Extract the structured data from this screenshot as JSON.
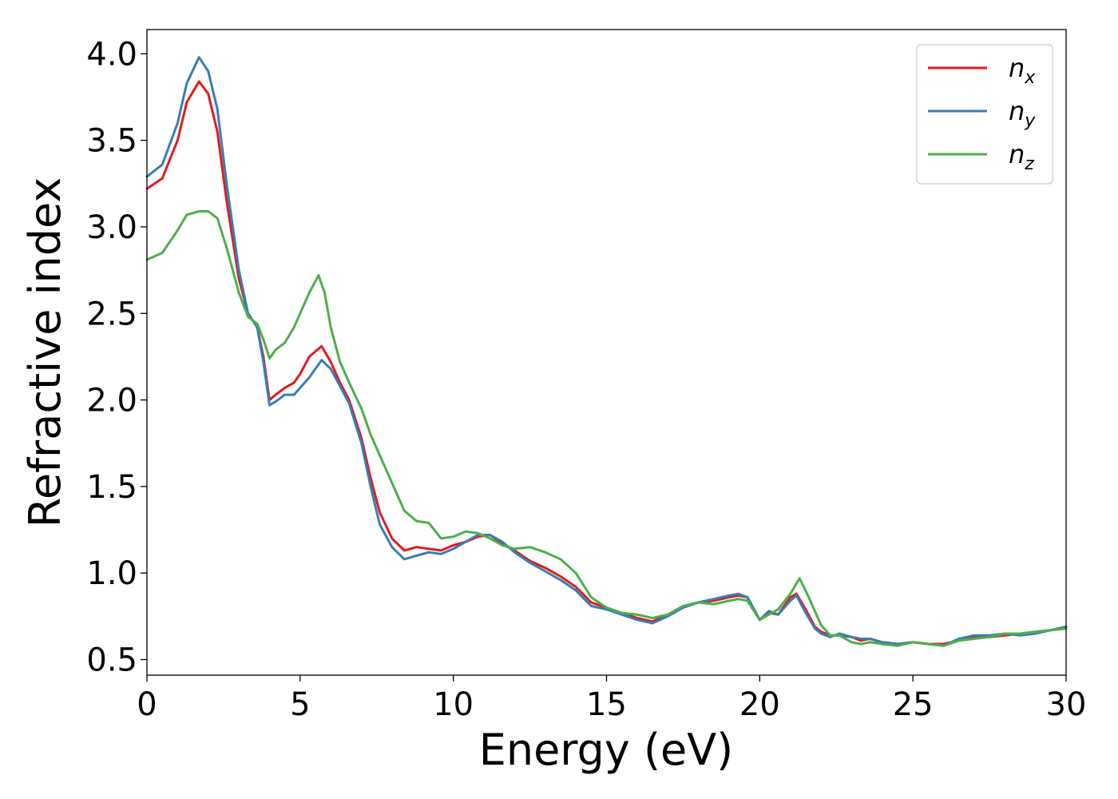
{
  "chart_data": {
    "type": "line",
    "xlabel": "Energy (eV)",
    "ylabel": "Refractive index",
    "xlim": [
      0,
      30
    ],
    "ylim": [
      0.41,
      4.14
    ],
    "xticks": [
      0,
      5,
      10,
      15,
      20,
      25,
      30
    ],
    "xtick_labels": [
      "0",
      "5",
      "10",
      "15",
      "20",
      "25",
      "30"
    ],
    "yticks": [
      0.5,
      1.0,
      1.5,
      2.0,
      2.5,
      3.0,
      3.5,
      4.0
    ],
    "ytick_labels": [
      "0.5",
      "1.0",
      "1.5",
      "2.0",
      "2.5",
      "3.0",
      "3.5",
      "4.0"
    ],
    "grid": false,
    "legend_position": "top-right",
    "series": [
      {
        "name": "n_x",
        "label_main": "n",
        "label_sub": "x",
        "color": "#e41a1c",
        "x": [
          0,
          0.5,
          1.0,
          1.3,
          1.7,
          2.0,
          2.3,
          2.6,
          3.0,
          3.3,
          3.6,
          3.8,
          4.0,
          4.2,
          4.5,
          4.8,
          5.0,
          5.3,
          5.7,
          6.0,
          6.3,
          6.6,
          7.0,
          7.3,
          7.6,
          8.0,
          8.4,
          8.8,
          9.2,
          9.6,
          10.0,
          10.4,
          10.8,
          11.2,
          11.6,
          12.0,
          12.5,
          13.0,
          13.5,
          14.0,
          14.5,
          15.0,
          15.5,
          16.0,
          16.5,
          17.0,
          17.5,
          18.0,
          18.5,
          19.0,
          19.3,
          19.6,
          20.0,
          20.3,
          20.6,
          21.0,
          21.2,
          21.5,
          21.8,
          22.0,
          22.3,
          22.6,
          23.0,
          23.3,
          23.6,
          24.0,
          24.5,
          25.0,
          25.5,
          26.0,
          26.5,
          27.0,
          27.5,
          28.0,
          28.5,
          29.0,
          29.5,
          30.0
        ],
        "y": [
          3.22,
          3.28,
          3.5,
          3.72,
          3.84,
          3.77,
          3.55,
          3.15,
          2.7,
          2.5,
          2.42,
          2.25,
          2.0,
          2.03,
          2.07,
          2.1,
          2.15,
          2.25,
          2.31,
          2.22,
          2.1,
          2.0,
          1.78,
          1.55,
          1.35,
          1.2,
          1.13,
          1.15,
          1.14,
          1.13,
          1.16,
          1.18,
          1.21,
          1.22,
          1.17,
          1.13,
          1.07,
          1.03,
          0.98,
          0.92,
          0.83,
          0.8,
          0.77,
          0.74,
          0.72,
          0.76,
          0.8,
          0.83,
          0.84,
          0.86,
          0.87,
          0.86,
          0.73,
          0.77,
          0.76,
          0.86,
          0.88,
          0.79,
          0.69,
          0.66,
          0.64,
          0.64,
          0.63,
          0.61,
          0.62,
          0.6,
          0.59,
          0.6,
          0.59,
          0.59,
          0.61,
          0.63,
          0.63,
          0.64,
          0.65,
          0.66,
          0.67,
          0.68
        ]
      },
      {
        "name": "n_y",
        "label_main": "n",
        "label_sub": "y",
        "color": "#377eb8",
        "x": [
          0,
          0.5,
          1.0,
          1.3,
          1.7,
          2.0,
          2.3,
          2.6,
          3.0,
          3.3,
          3.6,
          3.8,
          4.0,
          4.2,
          4.5,
          4.8,
          5.0,
          5.3,
          5.7,
          6.0,
          6.3,
          6.6,
          7.0,
          7.3,
          7.6,
          8.0,
          8.4,
          8.8,
          9.2,
          9.6,
          10.0,
          10.4,
          10.8,
          11.2,
          11.6,
          12.0,
          12.5,
          13.0,
          13.5,
          14.0,
          14.5,
          15.0,
          15.5,
          16.0,
          16.5,
          17.0,
          17.5,
          18.0,
          18.5,
          19.0,
          19.3,
          19.6,
          20.0,
          20.3,
          20.6,
          21.0,
          21.2,
          21.5,
          21.8,
          22.0,
          22.3,
          22.6,
          23.0,
          23.3,
          23.6,
          24.0,
          24.5,
          25.0,
          25.5,
          26.0,
          26.5,
          27.0,
          27.5,
          28.0,
          28.5,
          29.0,
          29.5,
          30.0
        ],
        "y": [
          3.29,
          3.36,
          3.6,
          3.83,
          3.98,
          3.9,
          3.68,
          3.25,
          2.75,
          2.5,
          2.42,
          2.22,
          1.97,
          1.99,
          2.03,
          2.03,
          2.07,
          2.13,
          2.23,
          2.18,
          2.08,
          1.98,
          1.75,
          1.5,
          1.28,
          1.15,
          1.08,
          1.1,
          1.12,
          1.11,
          1.14,
          1.18,
          1.22,
          1.22,
          1.18,
          1.12,
          1.06,
          1.01,
          0.96,
          0.9,
          0.81,
          0.79,
          0.76,
          0.73,
          0.71,
          0.75,
          0.8,
          0.83,
          0.85,
          0.87,
          0.88,
          0.86,
          0.73,
          0.78,
          0.76,
          0.84,
          0.87,
          0.77,
          0.68,
          0.65,
          0.63,
          0.65,
          0.63,
          0.62,
          0.62,
          0.6,
          0.59,
          0.6,
          0.59,
          0.58,
          0.62,
          0.64,
          0.64,
          0.65,
          0.64,
          0.65,
          0.67,
          0.69
        ]
      },
      {
        "name": "n_z",
        "label_main": "n",
        "label_sub": "z",
        "color": "#4daf4a",
        "x": [
          0,
          0.5,
          1.0,
          1.3,
          1.7,
          2.0,
          2.3,
          2.6,
          3.0,
          3.3,
          3.6,
          3.8,
          4.0,
          4.2,
          4.5,
          4.8,
          5.0,
          5.3,
          5.6,
          5.8,
          6.0,
          6.3,
          6.6,
          7.0,
          7.3,
          7.6,
          8.0,
          8.4,
          8.8,
          9.2,
          9.6,
          10.0,
          10.4,
          10.8,
          11.2,
          11.6,
          12.0,
          12.5,
          13.0,
          13.5,
          14.0,
          14.5,
          15.0,
          15.5,
          16.0,
          16.5,
          17.0,
          17.5,
          18.0,
          18.5,
          19.0,
          19.3,
          19.6,
          20.0,
          20.3,
          20.6,
          21.0,
          21.3,
          21.6,
          22.0,
          22.3,
          22.6,
          23.0,
          23.3,
          23.6,
          24.0,
          24.5,
          25.0,
          25.5,
          26.0,
          26.5,
          27.0,
          27.5,
          28.0,
          28.5,
          29.0,
          29.5,
          30.0
        ],
        "y": [
          2.81,
          2.85,
          2.98,
          3.07,
          3.09,
          3.09,
          3.05,
          2.88,
          2.62,
          2.48,
          2.44,
          2.35,
          2.24,
          2.29,
          2.33,
          2.42,
          2.5,
          2.62,
          2.72,
          2.62,
          2.42,
          2.22,
          2.1,
          1.95,
          1.8,
          1.68,
          1.52,
          1.36,
          1.3,
          1.29,
          1.2,
          1.21,
          1.24,
          1.23,
          1.2,
          1.16,
          1.14,
          1.15,
          1.12,
          1.08,
          1.0,
          0.86,
          0.8,
          0.77,
          0.76,
          0.74,
          0.76,
          0.81,
          0.83,
          0.82,
          0.84,
          0.85,
          0.84,
          0.73,
          0.76,
          0.79,
          0.88,
          0.97,
          0.86,
          0.7,
          0.64,
          0.64,
          0.6,
          0.59,
          0.6,
          0.59,
          0.58,
          0.6,
          0.59,
          0.58,
          0.61,
          0.62,
          0.63,
          0.65,
          0.65,
          0.66,
          0.67,
          0.68
        ]
      }
    ]
  }
}
